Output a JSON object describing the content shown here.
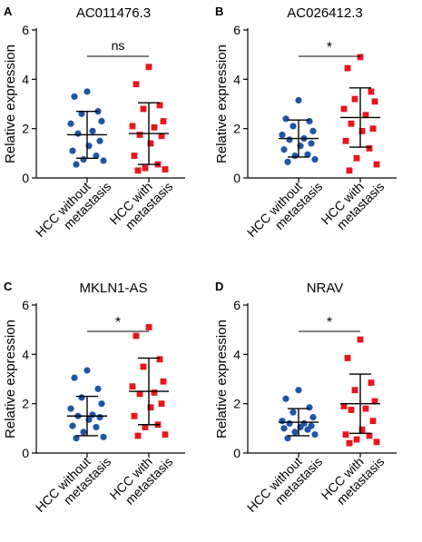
{
  "colors": {
    "without": "#1f55a6",
    "with": "#e8151b",
    "axis": "#000000"
  },
  "chart_data": [
    {
      "type": "scatter",
      "panel_label": "A",
      "title": "AC011476.3",
      "ylabel": "Relative  expression",
      "categories": [
        "HCC without metastasis",
        "HCC with metastasis"
      ],
      "category_lines": [
        [
          "HCC without",
          "metastasis"
        ],
        [
          "HCC with",
          "metastasis"
        ]
      ],
      "ylim": [
        0,
        6
      ],
      "yticks": [
        0,
        2,
        4,
        6
      ],
      "significance": "ns",
      "series": [
        {
          "values": [
            3.5,
            3.3,
            2.7,
            2.6,
            2.3,
            2.2,
            1.9,
            1.8,
            1.5,
            1.3,
            1.1,
            0.9,
            0.75,
            0.7,
            0.55
          ],
          "mean": 1.75,
          "sd": 0.95
        },
        {
          "values": [
            4.5,
            3.8,
            2.95,
            2.8,
            2.3,
            2.1,
            2.05,
            1.75,
            1.7,
            1.4,
            0.9,
            0.55,
            0.4,
            0.35,
            0.3
          ],
          "mean": 1.8,
          "sd": 1.25
        }
      ]
    },
    {
      "type": "scatter",
      "panel_label": "B",
      "title": "AC026412.3",
      "ylabel": "Relative  expression",
      "categories": [
        "HCC without metastasis",
        "HCC with metastasis"
      ],
      "category_lines": [
        [
          "HCC without",
          "metastasis"
        ],
        [
          "HCC with",
          "metastasis"
        ]
      ],
      "ylim": [
        0,
        6
      ],
      "yticks": [
        0,
        2,
        4,
        6
      ],
      "significance": "*",
      "series": [
        {
          "values": [
            3.15,
            2.4,
            2.3,
            2.1,
            1.9,
            1.75,
            1.6,
            1.55,
            1.4,
            1.3,
            1.15,
            0.95,
            0.9,
            0.75,
            0.65
          ],
          "mean": 1.6,
          "sd": 0.75
        },
        {
          "values": [
            4.9,
            4.45,
            3.5,
            3.2,
            3.1,
            2.8,
            2.55,
            2.2,
            2.0,
            1.9,
            1.5,
            1.2,
            0.8,
            0.55,
            0.3
          ],
          "mean": 2.45,
          "sd": 1.2
        }
      ]
    },
    {
      "type": "scatter",
      "panel_label": "C",
      "title": "MKLN1-AS",
      "ylabel": "Relative  expression",
      "categories": [
        "HCC without metastasis",
        "HCC with metastasis"
      ],
      "category_lines": [
        [
          "HCC without",
          "metastasis"
        ],
        [
          "HCC with",
          "metastasis"
        ]
      ],
      "ylim": [
        0,
        6
      ],
      "yticks": [
        0,
        2,
        4,
        6
      ],
      "significance": "*",
      "series": [
        {
          "values": [
            3.35,
            3.05,
            2.6,
            2.25,
            2.0,
            1.8,
            1.55,
            1.5,
            1.45,
            1.35,
            1.1,
            1.05,
            0.85,
            0.65,
            0.6
          ],
          "mean": 1.5,
          "sd": 0.8
        },
        {
          "values": [
            5.1,
            4.75,
            3.8,
            3.5,
            2.9,
            2.7,
            2.45,
            2.4,
            2.0,
            1.85,
            1.5,
            1.15,
            1.05,
            0.75,
            0.7
          ],
          "mean": 2.5,
          "sd": 1.35
        }
      ]
    },
    {
      "type": "scatter",
      "panel_label": "D",
      "title": "NRAV",
      "ylabel": "Relative  expression",
      "categories": [
        "HCC without metastasis",
        "HCC with metastasis"
      ],
      "category_lines": [
        [
          "HCC without",
          "metastasis"
        ],
        [
          "HCC with",
          "metastasis"
        ]
      ],
      "ylim": [
        0,
        6
      ],
      "yticks": [
        0,
        2,
        4,
        6
      ],
      "significance": "*",
      "series": [
        {
          "values": [
            2.55,
            2.2,
            1.85,
            1.65,
            1.45,
            1.3,
            1.2,
            1.2,
            1.1,
            1.05,
            1.0,
            0.95,
            0.85,
            0.75,
            0.6
          ],
          "mean": 1.25,
          "sd": 0.55
        },
        {
          "values": [
            4.6,
            3.85,
            2.85,
            2.55,
            2.1,
            1.9,
            1.8,
            1.75,
            1.3,
            0.95,
            0.75,
            0.7,
            0.55,
            0.45,
            0.4
          ],
          "mean": 2.0,
          "sd": 1.2
        }
      ]
    }
  ]
}
